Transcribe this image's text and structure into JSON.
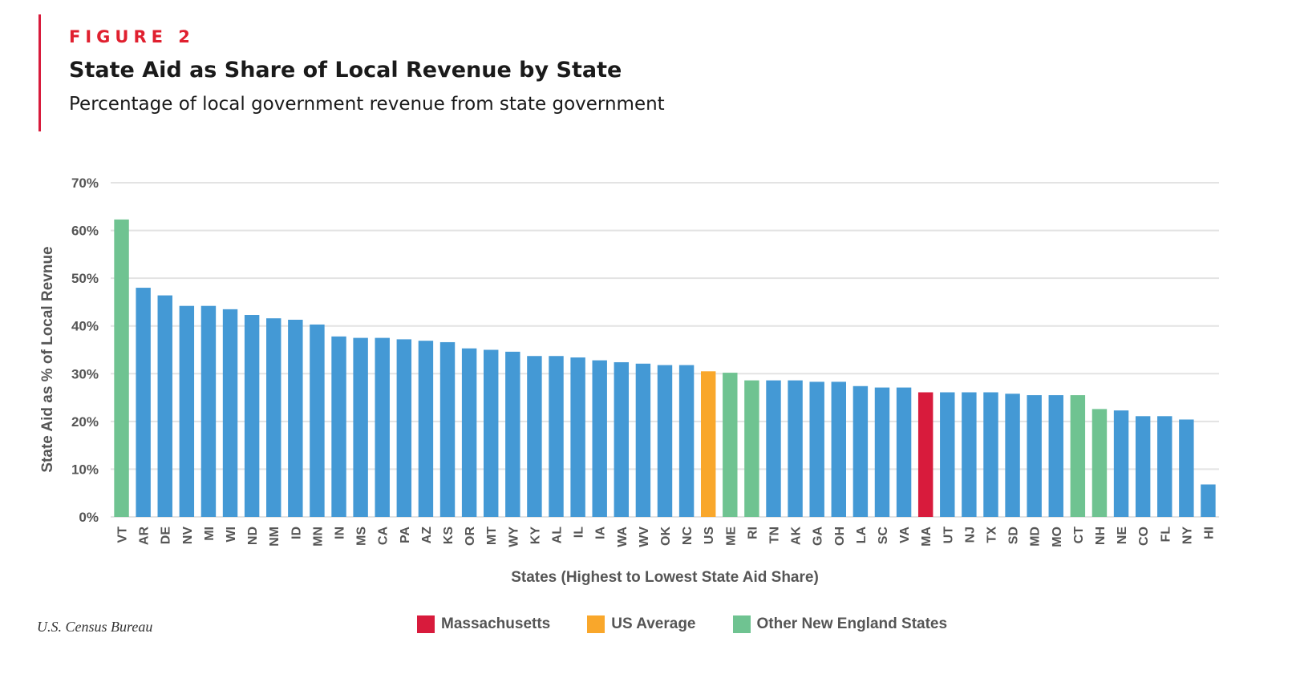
{
  "header": {
    "figure_label": "FIGURE 2",
    "title": "State Aid as Share of Local Revenue by State",
    "subtitle": "Percentage of local government revenue from state government"
  },
  "source": "U.S. Census Bureau",
  "legend": [
    {
      "label": "Massachusetts",
      "color": "#d81b3c"
    },
    {
      "label": "US Average",
      "color": "#f9a72b"
    },
    {
      "label": "Other New England States",
      "color": "#6fc391"
    }
  ],
  "chart_data": {
    "type": "bar",
    "title": "State Aid as Share of Local Revenue by State",
    "xlabel": "States (Highest to Lowest State Aid Share)",
    "ylabel": "State Aid as % of Local Revnue",
    "ylim": [
      0,
      70
    ],
    "yticks": [
      "0%",
      "10%",
      "20%",
      "30%",
      "40%",
      "50%",
      "60%",
      "70%"
    ],
    "grid": true,
    "legend_position": "bottom",
    "default_color": "#4499d5",
    "categories": [
      "VT",
      "AR",
      "DE",
      "NV",
      "MI",
      "WI",
      "ND",
      "NM",
      "ID",
      "MN",
      "IN",
      "MS",
      "CA",
      "PA",
      "AZ",
      "KS",
      "OR",
      "MT",
      "WY",
      "KY",
      "AL",
      "IL",
      "IA",
      "WA",
      "WV",
      "OK",
      "NC",
      "US",
      "ME",
      "RI",
      "TN",
      "AK",
      "GA",
      "OH",
      "LA",
      "SC",
      "VA",
      "MA",
      "UT",
      "NJ",
      "TX",
      "SD",
      "MD",
      "MO",
      "CT",
      "NH",
      "NE",
      "CO",
      "FL",
      "NY",
      "HI"
    ],
    "values": [
      62.3,
      48.0,
      46.4,
      44.2,
      44.2,
      43.5,
      42.3,
      41.6,
      41.3,
      40.3,
      37.8,
      37.5,
      37.5,
      37.2,
      36.9,
      36.6,
      35.3,
      35.0,
      34.6,
      33.7,
      33.7,
      33.4,
      32.8,
      32.4,
      32.1,
      31.8,
      31.8,
      30.5,
      30.2,
      28.6,
      28.6,
      28.6,
      28.3,
      28.3,
      27.4,
      27.1,
      27.1,
      26.1,
      26.1,
      26.1,
      26.1,
      25.8,
      25.5,
      25.5,
      25.5,
      22.6,
      22.3,
      21.1,
      21.1,
      20.4,
      6.8
    ],
    "highlights": {
      "MA": "#d81b3c",
      "US": "#f9a72b",
      "VT": "#6fc391",
      "ME": "#6fc391",
      "RI": "#6fc391",
      "CT": "#6fc391",
      "NH": "#6fc391"
    }
  }
}
